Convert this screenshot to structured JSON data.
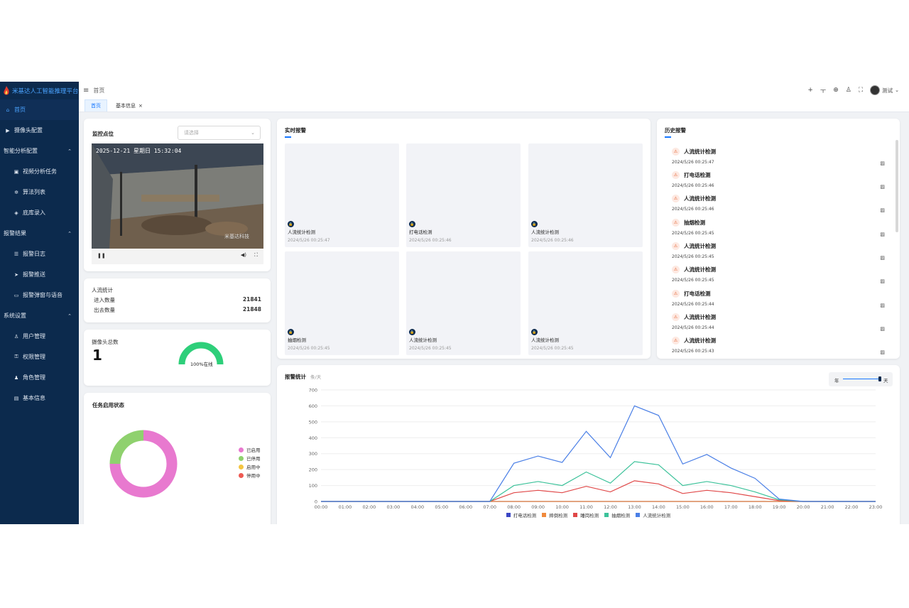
{
  "app": {
    "title": "米基达人工智能推理平台"
  },
  "sidebar": {
    "items": [
      {
        "label": "首页",
        "icon": "home-icon"
      },
      {
        "label": "摄像头配置",
        "icon": "camera-icon"
      },
      {
        "label": "智能分析配置",
        "icon": ""
      },
      {
        "label": "视频分析任务",
        "icon": "video-icon"
      },
      {
        "label": "算法列表",
        "icon": "gear-icon"
      },
      {
        "label": "底库录入",
        "icon": "box-icon"
      },
      {
        "label": "报警结果",
        "icon": ""
      },
      {
        "label": "报警日志",
        "icon": "list-icon"
      },
      {
        "label": "报警推送",
        "icon": "send-icon"
      },
      {
        "label": "报警弹窗与语音",
        "icon": "window-icon"
      },
      {
        "label": "系统设置",
        "icon": ""
      },
      {
        "label": "用户管理",
        "icon": "user-icon"
      },
      {
        "label": "权限管理",
        "icon": "key-icon"
      },
      {
        "label": "角色管理",
        "icon": "role-icon"
      },
      {
        "label": "基本信息",
        "icon": "info-icon"
      }
    ]
  },
  "topbar": {
    "breadcrumb": "首页",
    "user": "测试"
  },
  "tabs": [
    {
      "label": "首页"
    },
    {
      "label": "基本信息"
    }
  ],
  "monitor": {
    "title": "监控点位",
    "select_placeholder": "请选择",
    "video_timestamp": "2025-12-21 星期日 15:32:04",
    "video_watermark": "米基达科技"
  },
  "people": {
    "title": "人流统计",
    "in_label": "进入数量",
    "in_value": "21841",
    "out_label": "出去数量",
    "out_value": "21848"
  },
  "cameras": {
    "title": "摄像头总数",
    "total": "1",
    "online_label": "100%在线",
    "online_ratio": 1.0
  },
  "tasks": {
    "title": "任务启用状态",
    "legend": [
      {
        "label": "已启用",
        "color": "#e879cf",
        "value": 75
      },
      {
        "label": "已停用",
        "color": "#8fd16e",
        "value": 25
      },
      {
        "label": "启用中",
        "color": "#f4c542",
        "value": 0
      },
      {
        "label": "停用中",
        "color": "#ee5a52",
        "value": 0
      }
    ]
  },
  "realtime": {
    "title": "实时报警",
    "items": [
      {
        "name": "人流统计检测",
        "time": "2024/5/26 00:25:47"
      },
      {
        "name": "打电话检测",
        "time": "2024/5/26 00:25:46"
      },
      {
        "name": "人流统计检测",
        "time": "2024/5/26 00:25:46"
      },
      {
        "name": "抽烟检测",
        "time": "2024/5/26 00:25:45"
      },
      {
        "name": "人流统计检测",
        "time": "2024/5/26 00:25:45"
      },
      {
        "name": "人流统计检测",
        "time": "2024/5/26 00:25:45"
      }
    ]
  },
  "history": {
    "title": "历史报警",
    "items": [
      {
        "name": "人流统计检测",
        "time": "2024/5/26 00:25:47"
      },
      {
        "name": "打电话检测",
        "time": "2024/5/26 00:25:46"
      },
      {
        "name": "人流统计检测",
        "time": "2024/5/26 00:25:46"
      },
      {
        "name": "抽烟检测",
        "time": "2024/5/26 00:25:45"
      },
      {
        "name": "人流统计检测",
        "time": "2024/5/26 00:25:45"
      },
      {
        "name": "人流统计检测",
        "time": "2024/5/26 00:25:45"
      },
      {
        "name": "打电话检测",
        "time": "2024/5/26 00:25:44"
      },
      {
        "name": "人流统计检测",
        "time": "2024/5/26 00:25:44"
      },
      {
        "name": "人流统计检测",
        "time": "2024/5/26 00:25:43"
      }
    ]
  },
  "stats": {
    "title": "报警统计",
    "unit": "条/天",
    "toggle_left": "年",
    "toggle_right": "天"
  },
  "chart_data": {
    "type": "line",
    "categories": [
      "00:00",
      "01:00",
      "02:00",
      "03:00",
      "04:00",
      "05:00",
      "06:00",
      "07:00",
      "08:00",
      "09:00",
      "10:00",
      "11:00",
      "12:00",
      "13:00",
      "14:00",
      "15:00",
      "16:00",
      "17:00",
      "18:00",
      "19:00",
      "20:00",
      "21:00",
      "22:00",
      "23:00"
    ],
    "ylim": [
      0,
      700
    ],
    "yticks": [
      0,
      100,
      200,
      300,
      400,
      500,
      600,
      700
    ],
    "series": [
      {
        "name": "打电话检测",
        "color": "#3b46c4",
        "values": [
          0,
          0,
          0,
          0,
          0,
          0,
          0,
          0,
          0,
          0,
          0,
          0,
          0,
          0,
          0,
          0,
          0,
          0,
          0,
          0,
          0,
          0,
          0,
          0
        ]
      },
      {
        "name": "摔倒检测",
        "color": "#f08a3c",
        "values": [
          0,
          0,
          0,
          0,
          0,
          0,
          0,
          0,
          0,
          0,
          0,
          0,
          0,
          0,
          0,
          0,
          0,
          0,
          0,
          0,
          0,
          0,
          0,
          0
        ]
      },
      {
        "name": "睡岗检测",
        "color": "#e04848",
        "values": [
          0,
          0,
          0,
          0,
          0,
          0,
          0,
          0,
          55,
          70,
          55,
          95,
          60,
          130,
          110,
          50,
          70,
          55,
          30,
          5,
          0,
          0,
          0,
          0
        ]
      },
      {
        "name": "抽烟检测",
        "color": "#3cc29a",
        "values": [
          0,
          0,
          0,
          0,
          0,
          0,
          0,
          0,
          100,
          125,
          100,
          185,
          115,
          250,
          230,
          100,
          125,
          100,
          60,
          10,
          0,
          0,
          0,
          0
        ]
      },
      {
        "name": "人流统计检测",
        "color": "#4a7fe6",
        "values": [
          0,
          0,
          0,
          0,
          0,
          0,
          0,
          0,
          240,
          285,
          245,
          440,
          275,
          600,
          540,
          235,
          295,
          210,
          145,
          15,
          0,
          0,
          0,
          0
        ]
      }
    ]
  }
}
